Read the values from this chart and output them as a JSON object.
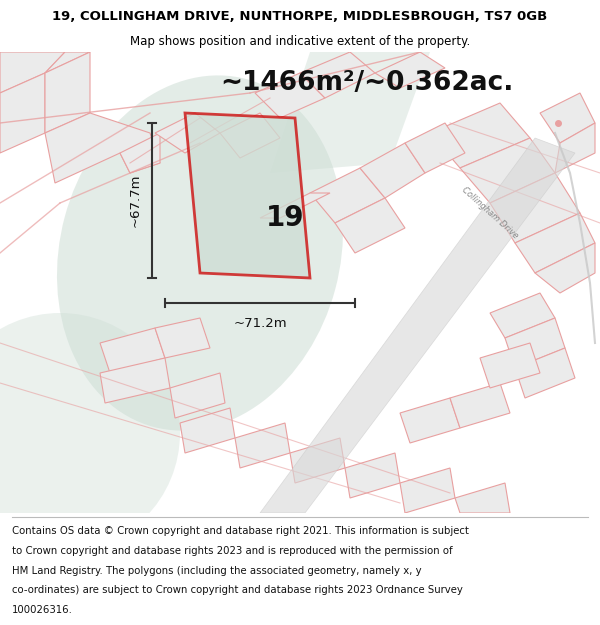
{
  "title_line1": "19, COLLINGHAM DRIVE, NUNTHORPE, MIDDLESBROUGH, TS7 0GB",
  "title_line2": "Map shows position and indicative extent of the property.",
  "area_label": "~1466m²/~0.362ac.",
  "property_number": "19",
  "dim_width": "~71.2m",
  "dim_height": "~67.7m",
  "footer_lines": [
    "Contains OS data © Crown copyright and database right 2021. This information is subject",
    "to Crown copyright and database rights 2023 and is reproduced with the permission of",
    "HM Land Registry. The polygons (including the associated geometry, namely x, y",
    "co-ordinates) are subject to Crown copyright and database rights 2023 Ordnance Survey",
    "100026316."
  ],
  "map_bg": "#ffffff",
  "parcel_fill": "#ebebeb",
  "parcel_edge": "#e8a0a0",
  "road_gray": "#c8c8c8",
  "green_fill": "#cdddd4",
  "property_stroke": "#cc0000",
  "property_fill": "#cdddd4",
  "title_fontsize": 9.5,
  "subtitle_fontsize": 8.5,
  "area_fontsize": 19,
  "footer_fontsize": 7.3,
  "collingham_label_color": "#888888"
}
